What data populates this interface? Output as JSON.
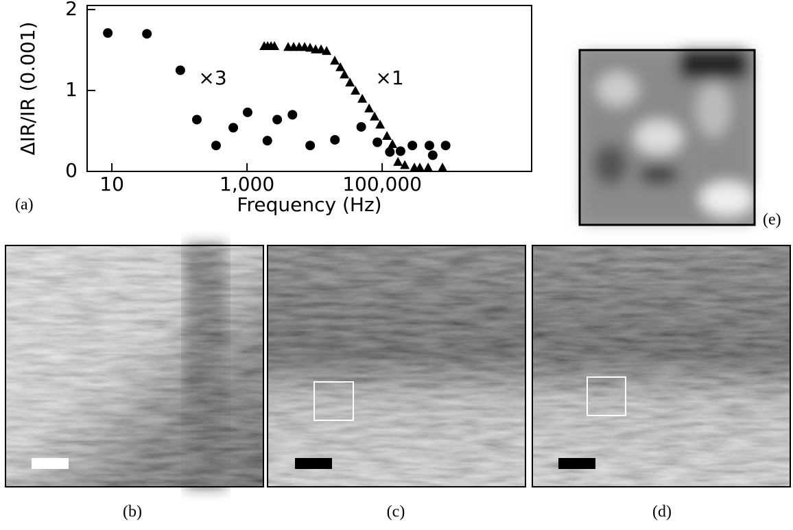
{
  "chart_data": {
    "type": "scatter",
    "x_label": "Frequency (Hz)",
    "y_label": "ΔIR/IR (0.001)",
    "xscale": "log",
    "xlim": [
      4.3,
      16300000
    ],
    "ylim": [
      0,
      2.05
    ],
    "xticks": [
      10,
      {
        "value": 1000,
        "label": "1,000"
      },
      {
        "value": 100000,
        "label": "100,000"
      }
    ],
    "yticks": [
      0,
      1,
      2
    ],
    "annotations": [
      "×3",
      "×1"
    ],
    "series": [
      {
        "marker": "circle",
        "color": "#000000",
        "x": [
          8.7,
          33,
          103,
          181,
          348,
          626,
          1020,
          2000,
          2800,
          4700,
          8600,
          20000,
          49000,
          85000,
          130000,
          187000,
          280000,
          500000,
          560000,
          870000
        ],
        "values": [
          1.71,
          1.7,
          1.25,
          0.64,
          0.32,
          0.54,
          0.73,
          0.38,
          0.64,
          0.7,
          0.32,
          0.39,
          0.55,
          0.36,
          0.24,
          0.25,
          0.32,
          0.32,
          0.2,
          0.32
        ]
      },
      {
        "marker": "triangle",
        "color": "#000000",
        "x": [
          1795,
          2018,
          2265,
          2547,
          4064,
          4898,
          5916,
          7129,
          8590,
          10350,
          12480,
          15060,
          19910,
          24040,
          27670,
          33340,
          40180,
          50790,
          64130,
          77270,
          93280,
          117800,
          141900,
          171400,
          216300,
          300000,
          361400,
          478600,
          781600
        ],
        "values": [
          1.55,
          1.55,
          1.55,
          1.55,
          1.54,
          1.54,
          1.54,
          1.54,
          1.53,
          1.51,
          1.51,
          1.49,
          1.37,
          1.29,
          1.2,
          1.1,
          1.0,
          0.9,
          0.78,
          0.68,
          0.58,
          0.44,
          0.34,
          0.12,
          0.08,
          0.05,
          0.05,
          0.05,
          0.05
        ]
      }
    ]
  },
  "panels": {
    "a": "(a)",
    "b": "(b)",
    "c": "(c)",
    "d": "(d)",
    "e": "(e)"
  }
}
